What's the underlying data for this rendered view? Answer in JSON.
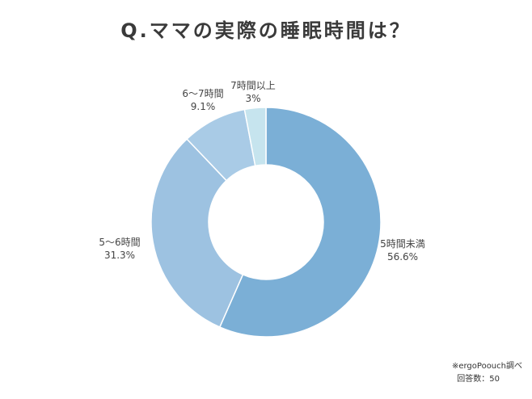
{
  "chart_data": {
    "type": "pie",
    "title": "Q.ママの実際の睡眠時間は？",
    "donut": true,
    "start_angle_deg": 0,
    "direction": "clockwise",
    "slices": [
      {
        "label": "5時間未満",
        "value_label": "56.6%",
        "value": 56.6,
        "color": "#7bafd6"
      },
      {
        "label": "5～6時間",
        "value_label": "31.3%",
        "value": 31.3,
        "color": "#9dc2e1"
      },
      {
        "label": "6～7時間",
        "value_label": "9.1%",
        "value": 9.1,
        "color": "#a9cbe6"
      },
      {
        "label": "7時間以上",
        "value_label": "3%",
        "value": 3,
        "color": "#c6e4ee"
      }
    ]
  },
  "notes": {
    "source": "※ergoPoouch調べ",
    "respondents": "回答数：50"
  }
}
